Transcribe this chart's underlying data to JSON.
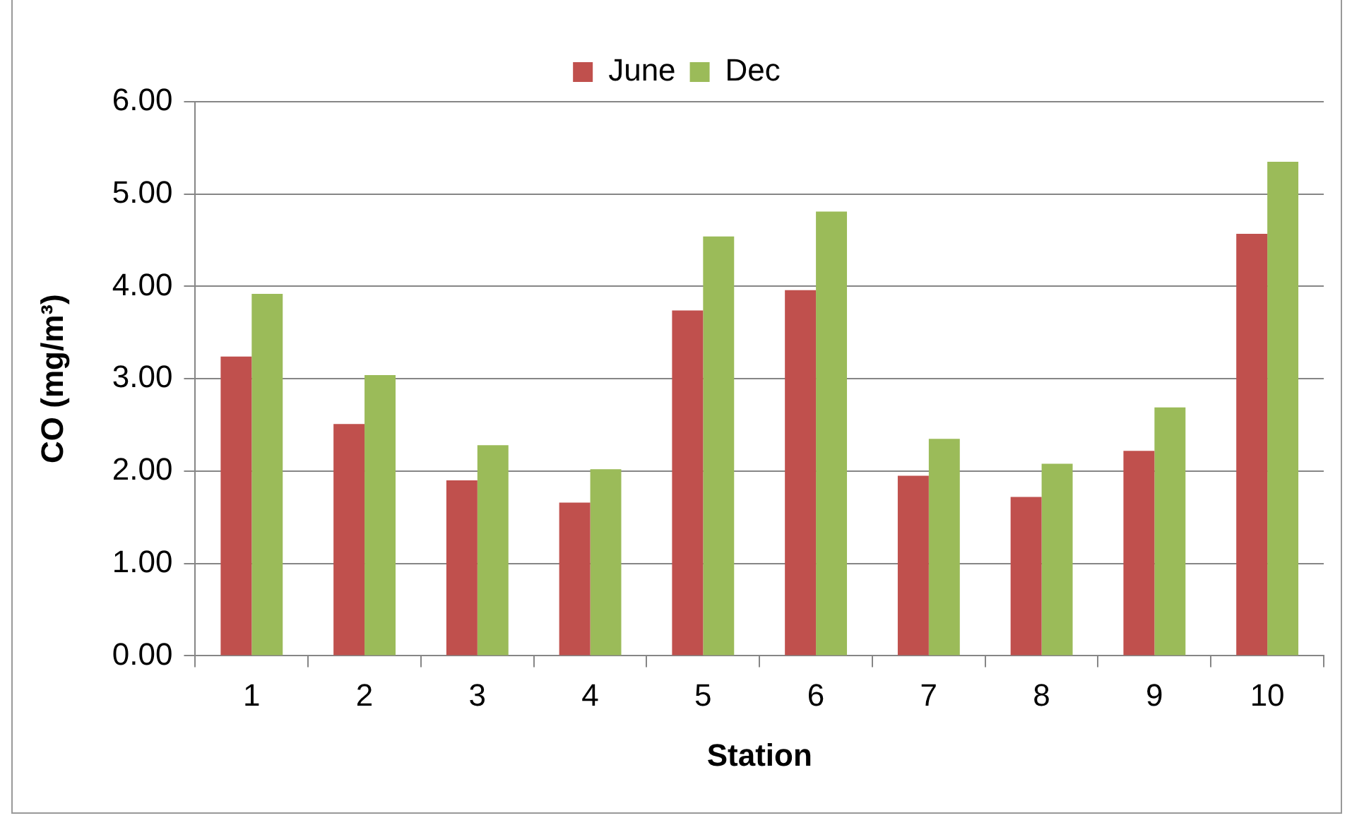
{
  "chart_data": {
    "type": "bar",
    "xlabel": "Station",
    "ylabel": "CO (mg/m³)",
    "categories": [
      "1",
      "2",
      "3",
      "4",
      "5",
      "6",
      "7",
      "8",
      "9",
      "10"
    ],
    "series": [
      {
        "name": "June",
        "color": "#c0504d",
        "values": [
          3.24,
          2.51,
          1.9,
          1.66,
          3.74,
          3.96,
          1.95,
          1.72,
          2.22,
          4.57
        ]
      },
      {
        "name": "Dec",
        "color": "#9bbb59",
        "values": [
          3.92,
          3.04,
          2.28,
          2.02,
          4.54,
          4.81,
          2.35,
          2.08,
          2.69,
          5.35
        ]
      }
    ],
    "ylim": [
      0,
      6
    ],
    "yticks": [
      {
        "value": 0,
        "label": "0.00"
      },
      {
        "value": 1,
        "label": "1.00"
      },
      {
        "value": 2,
        "label": "2.00"
      },
      {
        "value": 3,
        "label": "3.00"
      },
      {
        "value": 4,
        "label": "4.00"
      },
      {
        "value": 5,
        "label": "5.00"
      },
      {
        "value": 6,
        "label": "6.00"
      }
    ],
    "grid": "y",
    "legend": "top"
  }
}
